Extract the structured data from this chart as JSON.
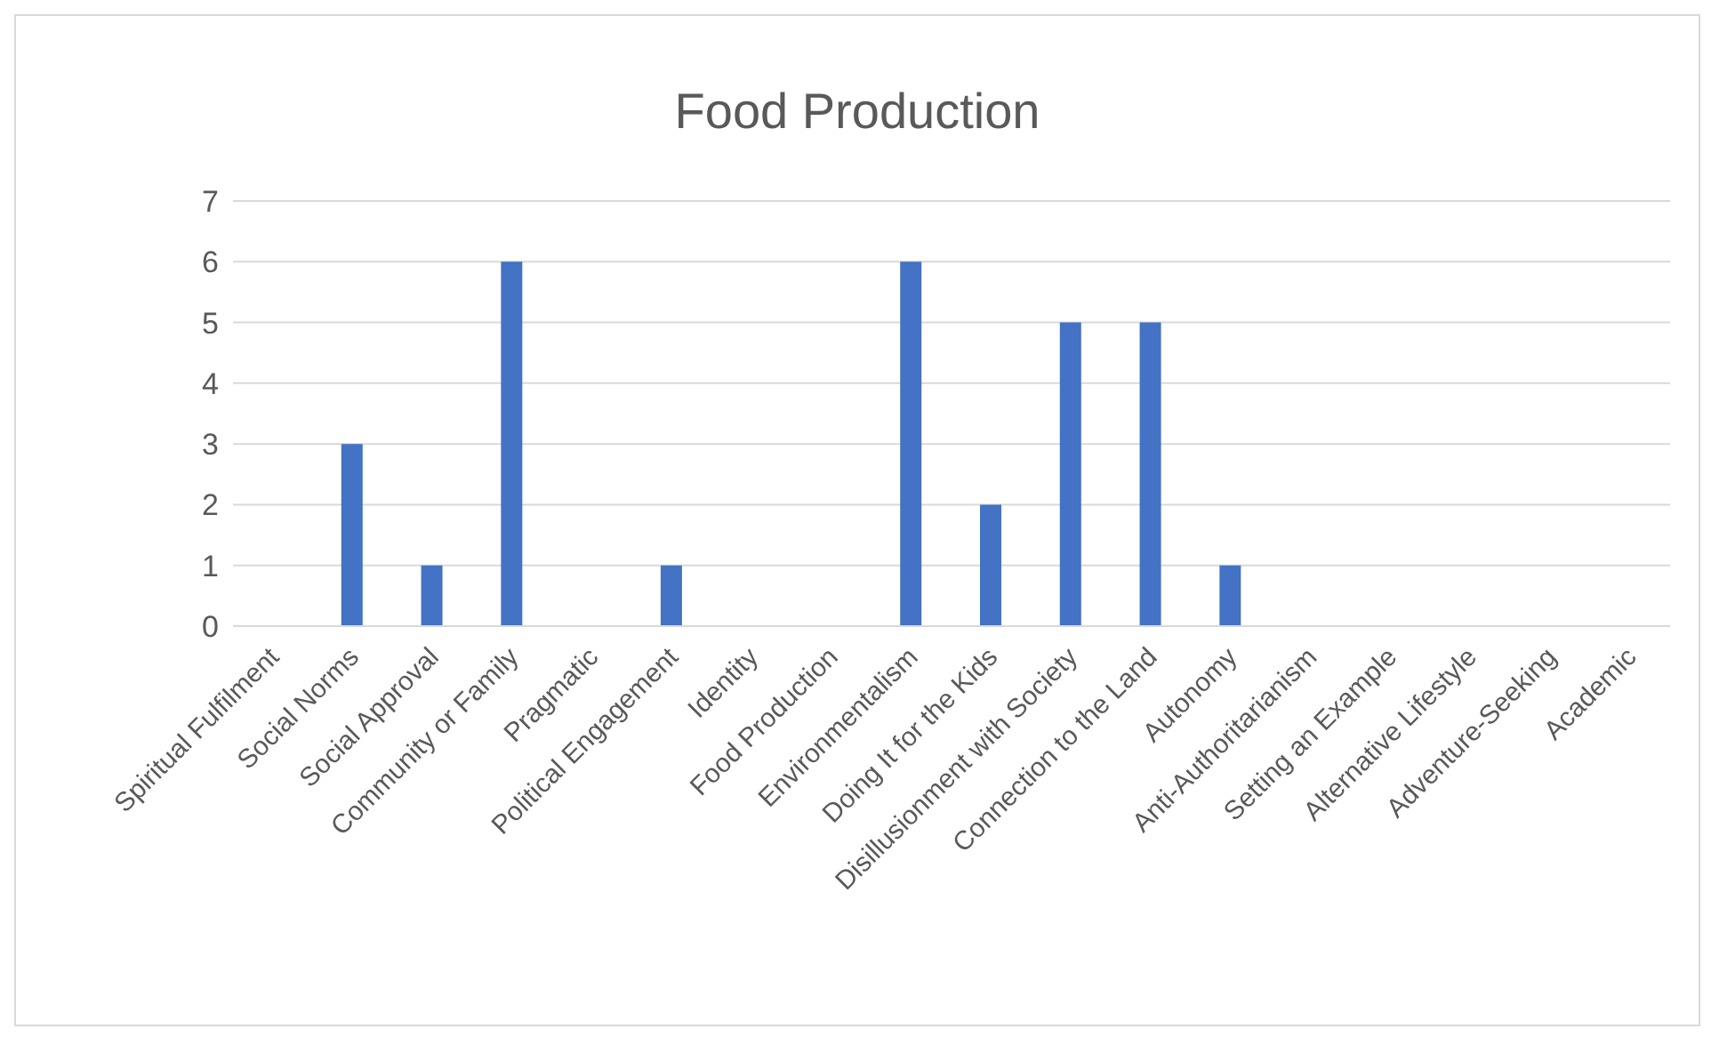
{
  "chart_data": {
    "type": "bar",
    "title": "Food Production",
    "categories": [
      "Spiritual Fulfilment",
      "Social Norms",
      "Social Approval",
      "Community or Family",
      "Pragmatic",
      "Political Engagement",
      "Identity",
      "Food Production",
      "Environmentalism",
      "Doing It for the Kids",
      "Disillusionment with Society",
      "Connection to the Land",
      "Autonomy",
      "Anti-Authoritarianism",
      "Setting an Example",
      "Alternative Lifestyle",
      "Adventure-Seeking",
      "Academic"
    ],
    "values": [
      0,
      3,
      1,
      6,
      0,
      1,
      0,
      0,
      6,
      2,
      5,
      5,
      1,
      0,
      0,
      0,
      0,
      0
    ],
    "color": "#4472c4",
    "ylim": [
      0,
      7
    ],
    "yticks": [
      0,
      1,
      2,
      3,
      4,
      5,
      6,
      7
    ],
    "grid": "y"
  }
}
